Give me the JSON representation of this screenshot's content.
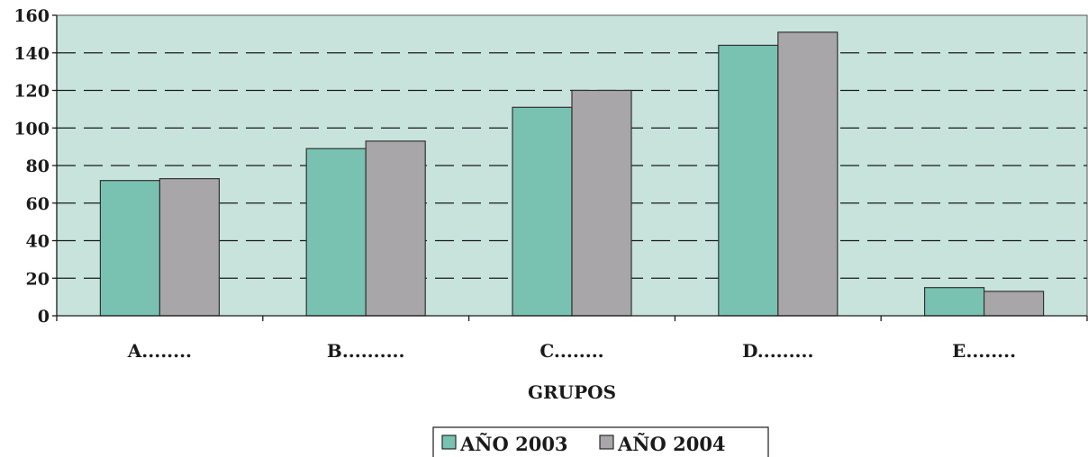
{
  "chart_data": {
    "type": "bar",
    "title": "",
    "xlabel": "GRUPOS",
    "ylabel": "",
    "categories": [
      "A........",
      "B..........",
      "C........",
      "D.........",
      "E........"
    ],
    "series": [
      {
        "name": "AÑO 2003",
        "values": [
          72,
          89,
          111,
          144,
          15
        ],
        "color": "#79C2B2"
      },
      {
        "name": "AÑO 2004",
        "values": [
          73,
          93,
          120,
          151,
          13
        ],
        "color": "#A8A6A8"
      }
    ],
    "ylim": [
      0,
      160
    ],
    "yticks": [
      0,
      20,
      40,
      60,
      80,
      100,
      120,
      140,
      160
    ],
    "grid": true,
    "grid_style": "dashed",
    "legend_position": "bottom",
    "plot_background": "#C7E3DC",
    "bar_border_color": "#333333"
  }
}
